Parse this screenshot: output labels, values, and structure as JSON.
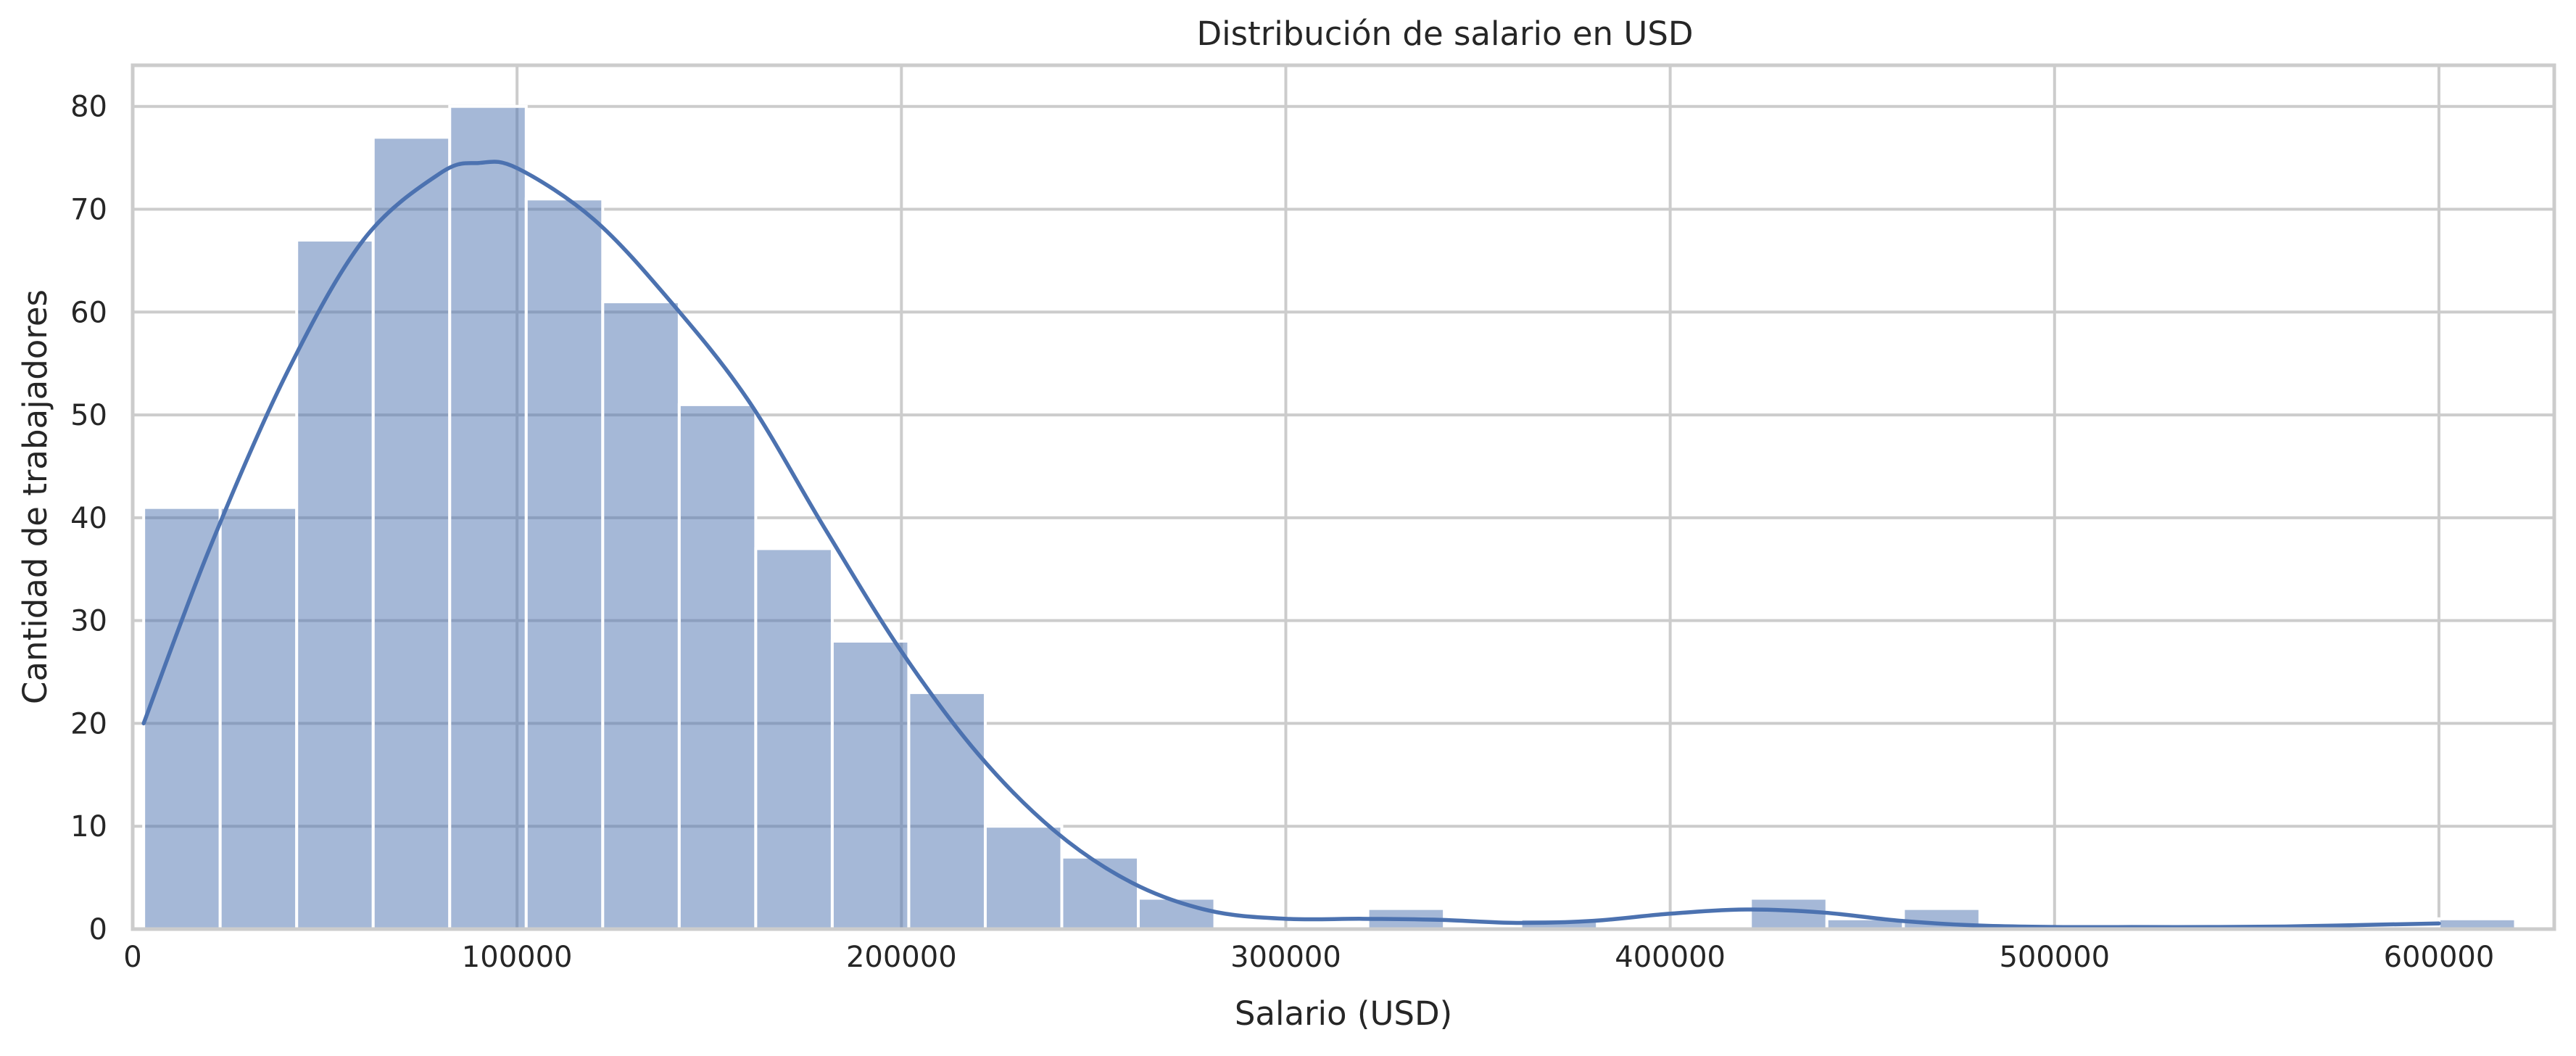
{
  "chart_data": {
    "type": "bar",
    "title": "Distribución de salario en USD",
    "xlabel": "Salario (USD)",
    "ylabel": "Cantidad de trabajadores",
    "xlim": [
      0,
      630000
    ],
    "ylim": [
      0,
      84
    ],
    "x_ticks": [
      0,
      100000,
      200000,
      300000,
      400000,
      500000,
      600000
    ],
    "x_tick_labels": [
      "0",
      "100000",
      "200000",
      "300000",
      "400000",
      "500000",
      "600000"
    ],
    "y_ticks": [
      0,
      10,
      20,
      30,
      40,
      50,
      60,
      70,
      80
    ],
    "y_tick_labels": [
      "0",
      "10",
      "20",
      "30",
      "40",
      "50",
      "60",
      "70",
      "80"
    ],
    "grid": true,
    "bin_start": 2859,
    "bin_width": 19905,
    "values": [
      41,
      41,
      67,
      77,
      80,
      71,
      61,
      51,
      37,
      28,
      23,
      10,
      7,
      3,
      0,
      0,
      2,
      0,
      1,
      0,
      0,
      3,
      1,
      2,
      0,
      0,
      0,
      0,
      0,
      0,
      1
    ],
    "series": [
      {
        "name": "KDE",
        "type": "line",
        "x": [
          2859,
          20000,
          40000,
          60000,
          80000,
          90000,
          100000,
          120000,
          140000,
          160000,
          180000,
          200000,
          220000,
          240000,
          260000,
          280000,
          300000,
          320000,
          340000,
          360000,
          380000,
          400000,
          420000,
          440000,
          460000,
          480000,
          500000,
          520000,
          540000,
          560000,
          580000,
          600000
        ],
        "y": [
          20,
          37,
          54,
          67,
          73.5,
          74.5,
          74,
          69,
          61,
          51.5,
          39,
          27,
          17,
          9.5,
          4.5,
          1.8,
          1.0,
          1.0,
          0.9,
          0.6,
          0.8,
          1.5,
          1.9,
          1.6,
          0.8,
          0.35,
          0.2,
          0.2,
          0.2,
          0.25,
          0.4,
          0.55
        ]
      }
    ]
  }
}
